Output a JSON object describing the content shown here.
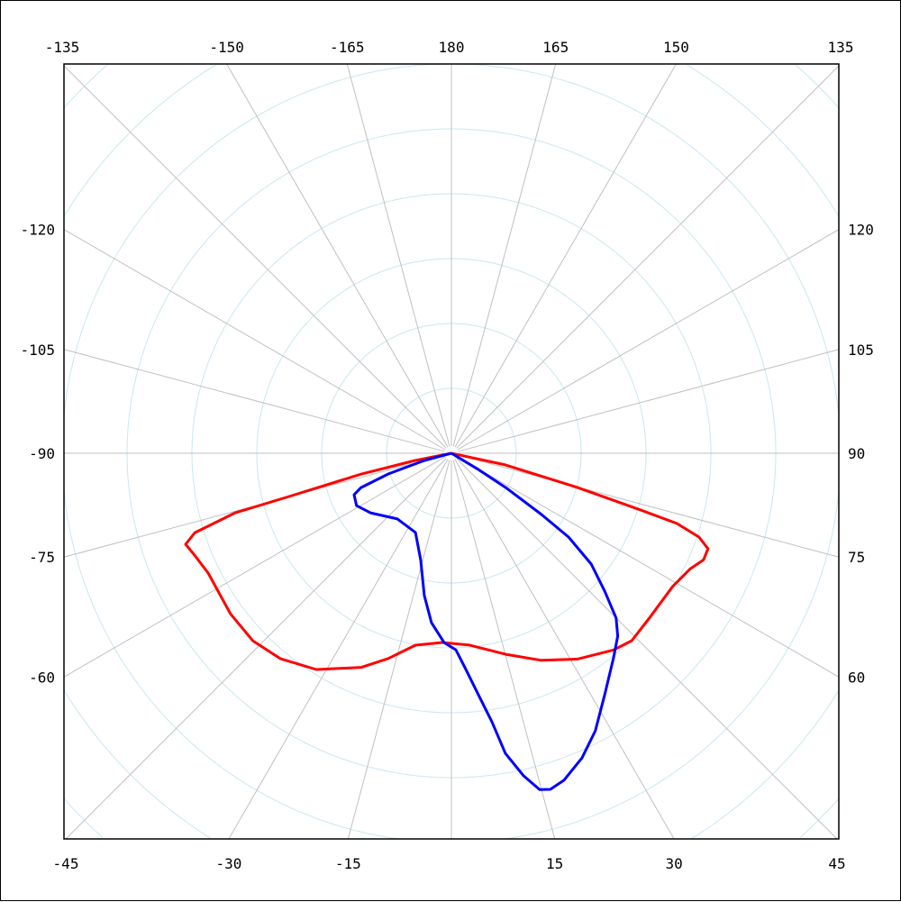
{
  "chart_data": {
    "type": "line",
    "coordinate_system": "polar",
    "angle_zero": "bottom",
    "angle_direction": "positive to the right",
    "angle_step_deg": 15,
    "grid": true,
    "radial_labels": false,
    "tick_labels": {
      "top": [
        "-135",
        "-150",
        "-165",
        "180",
        "165",
        "150",
        "135"
      ],
      "left": [
        "-120",
        "-105",
        "-90",
        "-75",
        "-60"
      ],
      "right": [
        "120",
        "105",
        "90",
        "75",
        "60"
      ],
      "bottom": [
        "-45",
        "-30",
        "-15",
        "15",
        "30",
        "45"
      ]
    },
    "tick_angles": {
      "top": [
        -135,
        -150,
        -165,
        180,
        165,
        150,
        135
      ],
      "left": [
        -120,
        -105,
        -90,
        -75,
        -60
      ],
      "right": [
        120,
        105,
        90,
        75,
        60
      ],
      "bottom": [
        -45,
        -30,
        -15,
        15,
        30,
        45
      ]
    },
    "colors": {
      "grid_rings": "#cce6ee",
      "grid_spokes": "#c0c0c0",
      "frame": "#000000"
    },
    "series": [
      {
        "color": "#ff0000",
        "points": [
          [
            90,
            0
          ],
          [
            77.8,
            0.85
          ],
          [
            74.8,
            2.01
          ],
          [
            73.3,
            3.05
          ],
          [
            72.7,
            3.64
          ],
          [
            71.3,
            4.03
          ],
          [
            69.6,
            4.22
          ],
          [
            67.1,
            4.22
          ],
          [
            64.2,
            4.09
          ],
          [
            58.9,
            3.98
          ],
          [
            50.3,
            3.97
          ],
          [
            43.9,
            4.01
          ],
          [
            39.5,
            3.93
          ],
          [
            31.5,
            3.72
          ],
          [
            23.5,
            3.48
          ],
          [
            15.1,
            3.21
          ],
          [
            5.4,
            2.97
          ],
          [
            -2.7,
            2.92
          ],
          [
            -10.6,
            3.01
          ],
          [
            -17.1,
            3.31
          ],
          [
            -22.8,
            3.58
          ],
          [
            -32.0,
            3.93
          ],
          [
            -39.8,
            4.12
          ],
          [
            -46.6,
            4.21
          ],
          [
            -54.0,
            4.21
          ],
          [
            -63.8,
            4.18
          ],
          [
            -68.4,
            4.26
          ],
          [
            -71.1,
            4.33
          ],
          [
            -72.8,
            4.14
          ],
          [
            -74.6,
            3.46
          ],
          [
            -75.1,
            2.59
          ],
          [
            -77.0,
            1.43
          ],
          [
            -78.7,
            0.57
          ],
          [
            -90,
            0
          ]
        ]
      },
      {
        "color": "#0000ff",
        "points": [
          [
            60,
            0
          ],
          [
            59.0,
            0.49
          ],
          [
            57.7,
            0.99
          ],
          [
            55.8,
            1.68
          ],
          [
            54.4,
            2.22
          ],
          [
            51.6,
            2.75
          ],
          [
            48.0,
            3.18
          ],
          [
            45.0,
            3.59
          ],
          [
            42.3,
            3.81
          ],
          [
            38.3,
            4.03
          ],
          [
            32.4,
            4.41
          ],
          [
            27.4,
            4.82
          ],
          [
            23.2,
            5.11
          ],
          [
            19.0,
            5.33
          ],
          [
            16.4,
            5.4
          ],
          [
            14.7,
            5.36
          ],
          [
            12.6,
            5.09
          ],
          [
            10.2,
            4.7
          ],
          [
            8.6,
            4.19
          ],
          [
            6.4,
            3.75
          ],
          [
            3.6,
            3.31
          ],
          [
            1.3,
            3.03
          ],
          [
            -2.2,
            2.92
          ],
          [
            -6.7,
            2.63
          ],
          [
            -10.8,
            2.23
          ],
          [
            -16.1,
            1.71
          ],
          [
            -24.4,
            1.34
          ],
          [
            -39.4,
            1.31
          ],
          [
            -53.7,
            1.55
          ],
          [
            -61.1,
            1.67
          ],
          [
            -66.9,
            1.63
          ],
          [
            -69.2,
            1.49
          ],
          [
            -71.8,
            1.02
          ],
          [
            -75.1,
            0.43
          ],
          [
            -75,
            0
          ]
        ]
      }
    ]
  }
}
